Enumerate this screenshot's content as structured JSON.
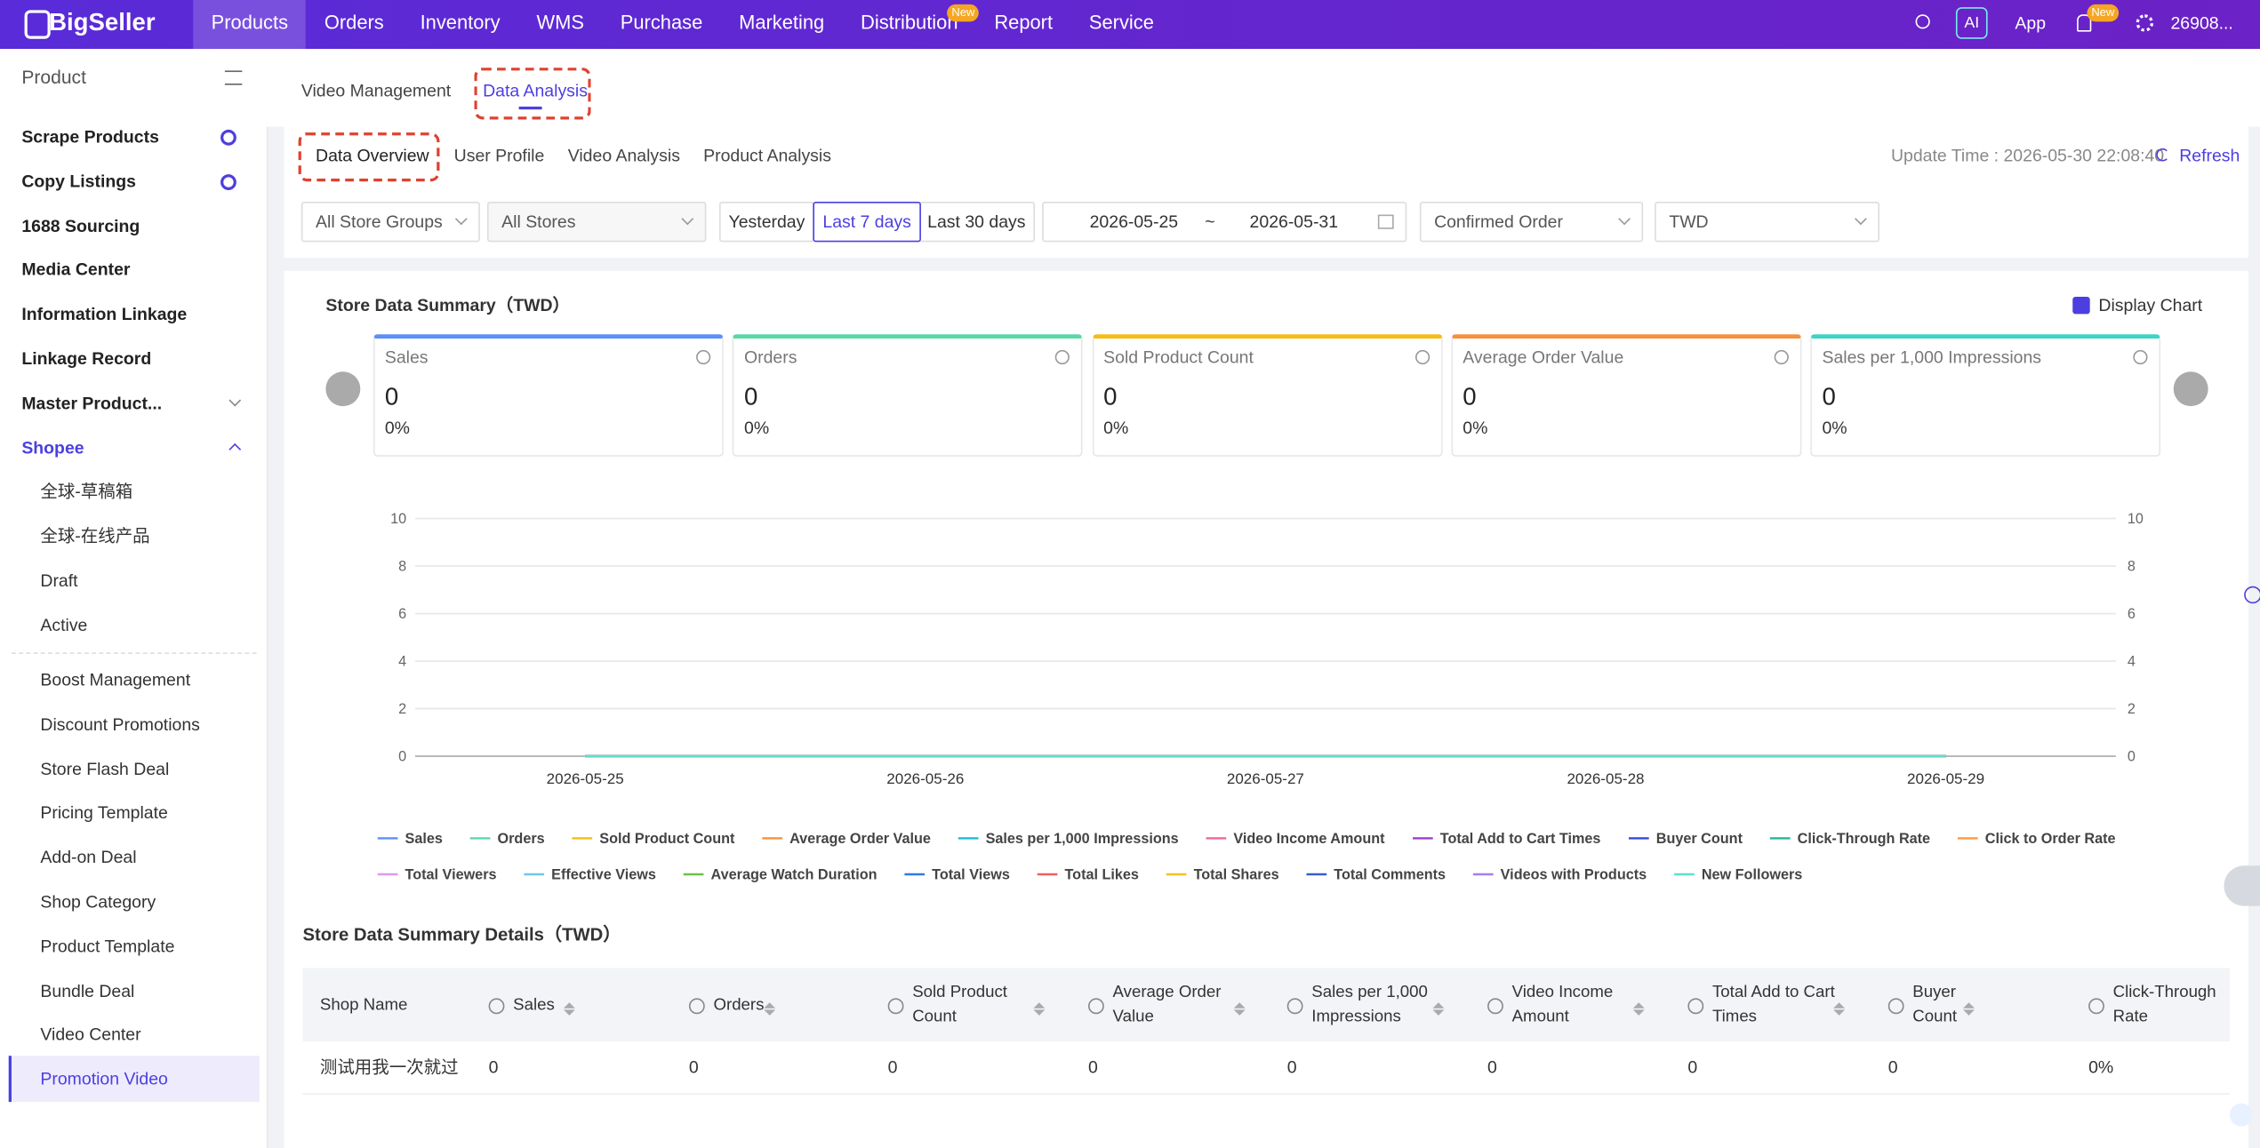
{
  "nav": {
    "logo": "BigSeller",
    "items": [
      "Products",
      "Orders",
      "Inventory",
      "WMS",
      "Purchase",
      "Marketing",
      "Distribution",
      "Report",
      "Service"
    ],
    "badge": "New",
    "ai": "AI",
    "app": "App",
    "bell_badge": "New",
    "user": "26908..."
  },
  "sidebar": {
    "title": "Product",
    "items": [
      "Scrape Products",
      "Copy Listings",
      "1688 Sourcing",
      "Media Center",
      "Information Linkage",
      "Linkage Record",
      "Master Product..."
    ],
    "group": "Shopee",
    "group_items": [
      "全球-草稿箱",
      "全球-在线产品",
      "Draft",
      "Active"
    ],
    "tools": [
      "Boost Management",
      "Discount Promotions",
      "Store Flash Deal",
      "Pricing Template",
      "Add-on Deal",
      "Shop Category",
      "Product Template",
      "Bundle Deal",
      "Video Center",
      "Promotion Video"
    ]
  },
  "tabs": [
    "Video Management",
    "Data Analysis"
  ],
  "subtabs": [
    "Data Overview",
    "User Profile",
    "Video Analysis",
    "Product Analysis"
  ],
  "update_time": "Update Time : 2026-05-30 22:08:40",
  "refresh": "Refresh",
  "filters": {
    "store_group": "All Store Groups",
    "stores": "All Stores",
    "ranges": [
      "Yesterday",
      "Last 7 days",
      "Last 30 days"
    ],
    "date_from": "2026-05-25",
    "separator": "~",
    "date_to": "2026-05-31",
    "order_type": "Confirmed Order",
    "currency": "TWD"
  },
  "summary": {
    "title": "Store Data Summary（TWD）",
    "display_chart": "Display Chart",
    "cards": [
      {
        "label": "Sales",
        "value": 0,
        "change": "0%",
        "color": "#5b8ff9"
      },
      {
        "label": "Orders",
        "value": 0,
        "change": "0%",
        "color": "#5ad8a6"
      },
      {
        "label": "Sold Product Count",
        "value": 0,
        "change": "0%",
        "color": "#f6bd16"
      },
      {
        "label": "Average Order Value",
        "value": 0,
        "change": "0%",
        "color": "#f6903d"
      },
      {
        "label": "Sales per 1,000 Impressions",
        "value": 0,
        "change": "0%",
        "color": "#3fd3c3"
      }
    ]
  },
  "chart_data": {
    "type": "line",
    "categories": [
      "2026-05-25",
      "2026-05-26",
      "2026-05-27",
      "2026-05-28",
      "2026-05-29"
    ],
    "ylim": [
      0,
      10
    ],
    "yticks": [
      0,
      2,
      4,
      6,
      8,
      10
    ],
    "y2lim": [
      0,
      10
    ],
    "y2ticks": [
      0,
      2,
      4,
      6,
      8,
      10
    ],
    "grid": true,
    "series": [
      {
        "name": "Sales",
        "color": "#5b8ff9",
        "values": [
          0,
          0,
          0,
          0,
          0
        ]
      },
      {
        "name": "Orders",
        "color": "#5ad8a6",
        "values": [
          0,
          0,
          0,
          0,
          0
        ]
      },
      {
        "name": "Sold Product Count",
        "color": "#f6bd16",
        "values": [
          0,
          0,
          0,
          0,
          0
        ]
      },
      {
        "name": "Average Order Value",
        "color": "#f6903d",
        "values": [
          0,
          0,
          0,
          0,
          0
        ]
      },
      {
        "name": "Sales per 1,000 Impressions",
        "color": "#1bbdd6",
        "values": [
          0,
          0,
          0,
          0,
          0
        ]
      },
      {
        "name": "Video Income Amount",
        "color": "#f0659b",
        "values": [
          0,
          0,
          0,
          0,
          0
        ]
      },
      {
        "name": "Total Add to Cart Times",
        "color": "#9a3fcf",
        "values": [
          0,
          0,
          0,
          0,
          0
        ]
      },
      {
        "name": "Buyer Count",
        "color": "#3547e0",
        "values": [
          0,
          0,
          0,
          0,
          0
        ]
      },
      {
        "name": "Click-Through Rate",
        "color": "#24b39b",
        "values": [
          0,
          0,
          0,
          0,
          0
        ]
      },
      {
        "name": "Click to Order Rate",
        "color": "#ff9845",
        "values": [
          0,
          0,
          0,
          0,
          0
        ]
      },
      {
        "name": "Total Viewers",
        "color": "#d99cf0",
        "values": [
          0,
          0,
          0,
          0,
          0
        ]
      },
      {
        "name": "Effective Views",
        "color": "#6dc8ec",
        "values": [
          0,
          0,
          0,
          0,
          0
        ]
      },
      {
        "name": "Average Watch Duration",
        "color": "#6cc244",
        "values": [
          0,
          0,
          0,
          0,
          0
        ]
      },
      {
        "name": "Total Views",
        "color": "#2f7be0",
        "values": [
          0,
          0,
          0,
          0,
          0
        ]
      },
      {
        "name": "Total Likes",
        "color": "#f06060",
        "values": [
          0,
          0,
          0,
          0,
          0
        ]
      },
      {
        "name": "Total Shares",
        "color": "#f6c022",
        "values": [
          0,
          0,
          0,
          0,
          0
        ]
      },
      {
        "name": "Total Comments",
        "color": "#3a5ec8",
        "values": [
          0,
          0,
          0,
          0,
          0
        ]
      },
      {
        "name": "Videos with Products",
        "color": "#a67cf0",
        "values": [
          0,
          0,
          0,
          0,
          0
        ]
      },
      {
        "name": "New Followers",
        "color": "#5ee0cc",
        "values": [
          0,
          0,
          0,
          0,
          0
        ]
      }
    ]
  },
  "details": {
    "title": "Store Data Summary Details（TWD）",
    "columns": [
      "Shop Name",
      "Sales",
      "Orders",
      "Sold Product Count",
      "Average Order Value",
      "Sales per 1,000 Impressions",
      "Video Income Amount",
      "Total Add to Cart Times",
      "Buyer Count",
      "Click-Through Rate"
    ],
    "rows": [
      [
        "测试用我一次就过",
        0,
        0,
        0,
        0,
        0,
        0,
        0,
        0,
        "0%"
      ]
    ]
  }
}
